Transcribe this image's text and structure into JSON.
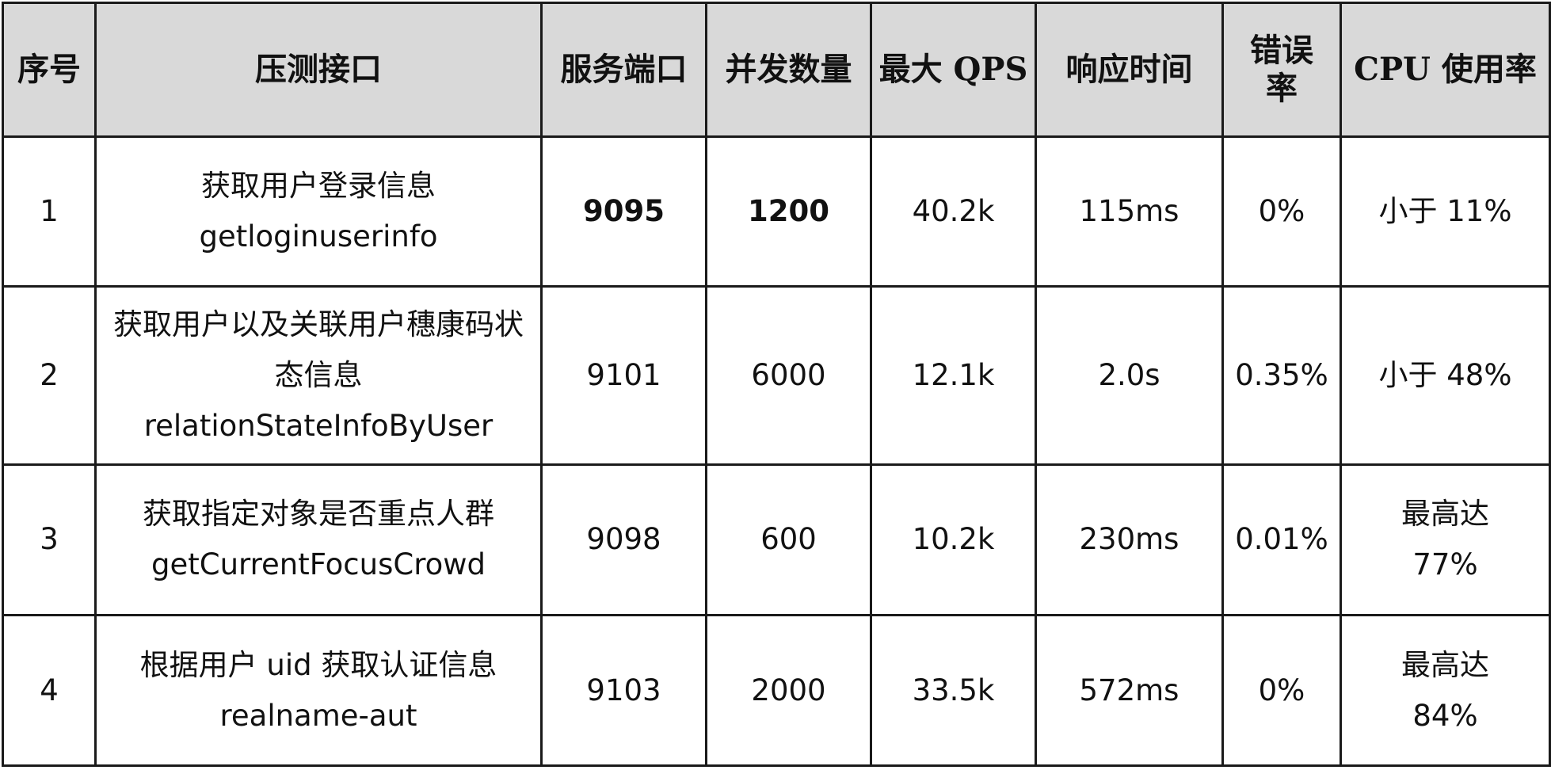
{
  "table": {
    "headers": {
      "index": "序号",
      "endpoint": "压测接口",
      "port": "服务端口",
      "concurrency": "并发数量",
      "max_qps": "最大 QPS",
      "response_time": "响应时间",
      "error_rate_line1": "错误",
      "error_rate_line2": "率",
      "cpu": "CPU 使用率"
    },
    "rows": [
      {
        "index": "1",
        "endpoint_cn": "获取用户登录信息",
        "endpoint_cn2": "",
        "endpoint_en": "getloginuserinfo",
        "port": "9095",
        "concurrency": "1200",
        "max_qps": "40.2k",
        "response_time": "115ms",
        "error_rate": "0%",
        "cpu": "小于 11%"
      },
      {
        "index": "2",
        "endpoint_cn": "获取用户以及关联用户穗康码状",
        "endpoint_cn2": "态信息",
        "endpoint_en": "relationStateInfoByUser",
        "port": "9101",
        "concurrency": "6000",
        "max_qps": "12.1k",
        "response_time": "2.0s",
        "error_rate": "0.35%",
        "cpu": "小于 48%"
      },
      {
        "index": "3",
        "endpoint_cn": "获取指定对象是否重点人群",
        "endpoint_cn2": "",
        "endpoint_en": "getCurrentFocusCrowd",
        "port": "9098",
        "concurrency": "600",
        "max_qps": "10.2k",
        "response_time": "230ms",
        "error_rate": "0.01%",
        "cpu_line1": "最高达",
        "cpu_line2": "77%"
      },
      {
        "index": "4",
        "endpoint_cn": "根据用户 uid 获取认证信息",
        "endpoint_cn2": "",
        "endpoint_en": "realname-aut",
        "port": "9103",
        "concurrency": "2000",
        "max_qps": "33.5k",
        "response_time": "572ms",
        "error_rate": "0%",
        "cpu_line1": "最高达",
        "cpu_line2": "84%"
      }
    ]
  }
}
